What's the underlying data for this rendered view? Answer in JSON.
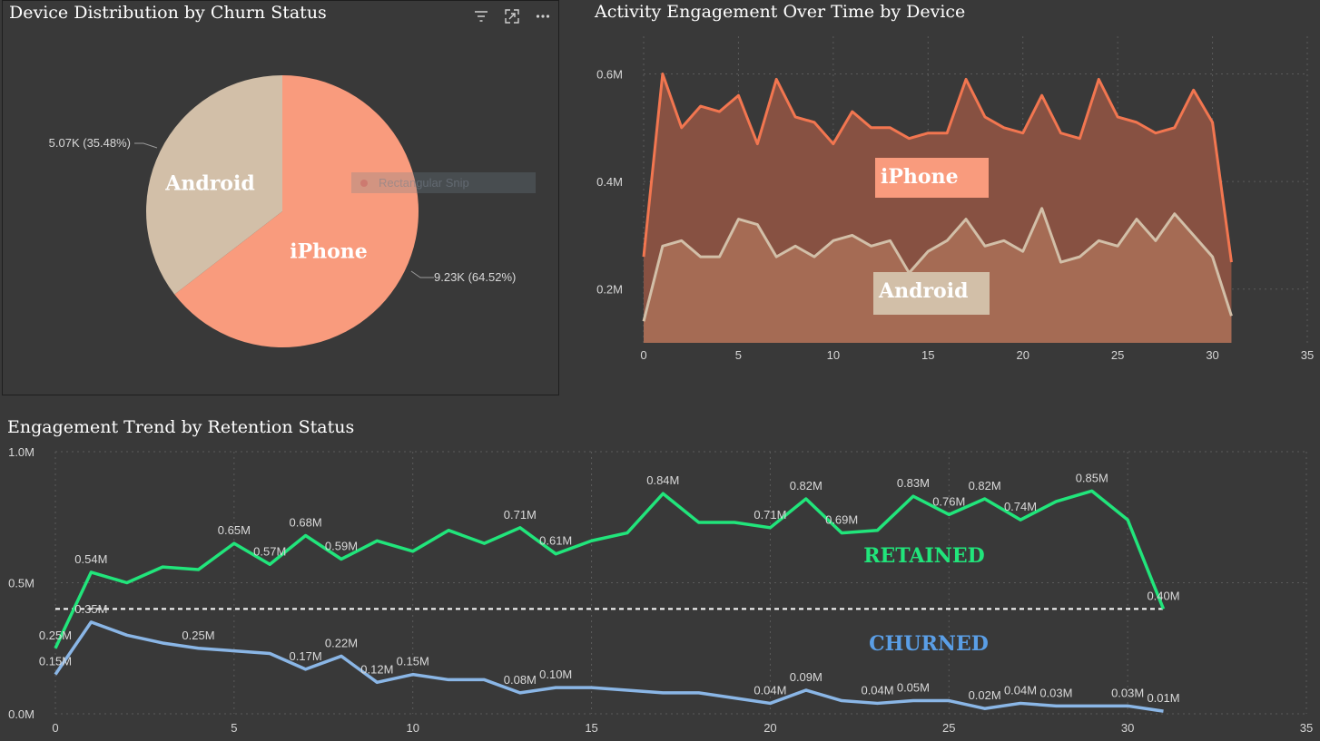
{
  "pie_panel": {
    "title": "Device Distribution by Churn Status"
  },
  "area_panel": {
    "title": "Activity Engagement Over Time by Device"
  },
  "line_panel": {
    "title": "Engagement Trend by Retention Status"
  },
  "toolbar": {
    "icons": [
      "filter-icon",
      "focus-mode-icon",
      "more-options-icon"
    ]
  },
  "snip_overlay": {
    "label": "Rectangular Snip"
  },
  "colors": {
    "iphone": "#f99b7d",
    "android": "#d2bfa8",
    "iphone_line": "#f27650",
    "retained": "#21e57b",
    "churned": "#8ab6e6",
    "background": "#393939"
  },
  "chart_data": [
    {
      "type": "pie",
      "title": "Device Distribution by Churn Status",
      "slices": [
        {
          "name": "iPhone",
          "value": 9230,
          "percent": 64.52,
          "data_label": "9.23K (64.52%)",
          "color": "#f99b7d"
        },
        {
          "name": "Android",
          "value": 5070,
          "percent": 35.48,
          "data_label": "5.07K (35.48%)",
          "color": "#d2bfa8"
        }
      ],
      "inside_labels": [
        "iPhone",
        "Android"
      ]
    },
    {
      "type": "area",
      "title": "Activity Engagement Over Time by Device",
      "x": [
        0,
        1,
        2,
        3,
        4,
        5,
        6,
        7,
        8,
        9,
        10,
        11,
        12,
        13,
        14,
        15,
        16,
        17,
        18,
        19,
        20,
        21,
        22,
        23,
        24,
        25,
        26,
        27,
        28,
        29,
        30,
        31
      ],
      "series": [
        {
          "name": "iPhone",
          "color": "#f27650",
          "values": [
            0.26,
            0.6,
            0.5,
            0.54,
            0.53,
            0.56,
            0.47,
            0.59,
            0.52,
            0.51,
            0.47,
            0.53,
            0.5,
            0.5,
            0.48,
            0.49,
            0.49,
            0.59,
            0.52,
            0.5,
            0.49,
            0.56,
            0.49,
            0.48,
            0.59,
            0.52,
            0.51,
            0.49,
            0.5,
            0.57,
            0.51,
            0.25
          ]
        },
        {
          "name": "Android",
          "color": "#d2bfa8",
          "values": [
            0.14,
            0.28,
            0.29,
            0.26,
            0.26,
            0.33,
            0.32,
            0.26,
            0.28,
            0.26,
            0.29,
            0.3,
            0.28,
            0.29,
            0.23,
            0.27,
            0.29,
            0.33,
            0.28,
            0.29,
            0.27,
            0.35,
            0.25,
            0.26,
            0.29,
            0.28,
            0.33,
            0.29,
            0.34,
            0.3,
            0.26,
            0.15
          ]
        }
      ],
      "legend_boxes": [
        "iPhone",
        "Android"
      ],
      "xlim": [
        0,
        35
      ],
      "ylim": [
        0.1,
        0.67
      ],
      "x_ticks": [
        "0",
        "5",
        "10",
        "15",
        "20",
        "25",
        "30",
        "35"
      ],
      "y_ticks": [
        "0.2M",
        "0.4M",
        "0.6M"
      ],
      "grid": true
    },
    {
      "type": "line",
      "title": "Engagement Trend by Retention Status",
      "x": [
        0,
        1,
        2,
        3,
        4,
        5,
        6,
        7,
        8,
        9,
        10,
        11,
        12,
        13,
        14,
        15,
        16,
        17,
        18,
        19,
        20,
        21,
        22,
        23,
        24,
        25,
        26,
        27,
        28,
        29,
        30,
        31
      ],
      "series": [
        {
          "name": "RETAINED",
          "color": "#21e57b",
          "values": [
            0.25,
            0.54,
            0.5,
            0.56,
            0.55,
            0.65,
            0.57,
            0.68,
            0.59,
            0.66,
            0.62,
            0.7,
            0.65,
            0.71,
            0.61,
            0.66,
            0.69,
            0.84,
            0.73,
            0.73,
            0.71,
            0.82,
            0.69,
            0.7,
            0.83,
            0.76,
            0.82,
            0.74,
            0.81,
            0.85,
            0.74,
            0.4
          ],
          "data_labels": [
            "0.25M",
            "0.54M",
            null,
            null,
            null,
            "0.65M",
            "0.57M",
            "0.68M",
            "0.59M",
            null,
            null,
            null,
            null,
            "0.71M",
            "0.61M",
            null,
            null,
            "0.84M",
            null,
            null,
            "0.71M",
            "0.82M",
            "0.69M",
            null,
            "0.83M",
            "0.76M",
            "0.82M",
            "0.74M",
            null,
            "0.85M",
            null,
            "0.40M"
          ]
        },
        {
          "name": "CHURNED",
          "color": "#8ab6e6",
          "values": [
            0.15,
            0.35,
            0.3,
            0.27,
            0.25,
            0.24,
            0.23,
            0.17,
            0.22,
            0.12,
            0.15,
            0.13,
            0.13,
            0.08,
            0.1,
            0.1,
            0.09,
            0.08,
            0.08,
            0.06,
            0.04,
            0.09,
            0.05,
            0.04,
            0.05,
            0.05,
            0.02,
            0.04,
            0.03,
            0.03,
            0.03,
            0.01
          ],
          "data_labels": [
            "0.15M",
            "0.35M",
            null,
            null,
            "0.25M",
            null,
            null,
            "0.17M",
            "0.22M",
            "0.12M",
            "0.15M",
            null,
            null,
            "0.08M",
            "0.10M",
            null,
            null,
            null,
            null,
            null,
            "0.04M",
            "0.09M",
            null,
            "0.04M",
            "0.05M",
            null,
            "0.02M",
            "0.04M",
            "0.03M",
            null,
            "0.03M",
            "0.01M"
          ]
        }
      ],
      "series_labels": [
        "RETAINED",
        "CHURNED"
      ],
      "reference_line": 0.4,
      "xlim": [
        0,
        35
      ],
      "ylim": [
        0,
        1.0
      ],
      "x_ticks": [
        "0",
        "5",
        "10",
        "15",
        "20",
        "25",
        "30",
        "35"
      ],
      "y_ticks": [
        "0.0M",
        "0.5M",
        "1.0M"
      ],
      "grid": true
    }
  ]
}
